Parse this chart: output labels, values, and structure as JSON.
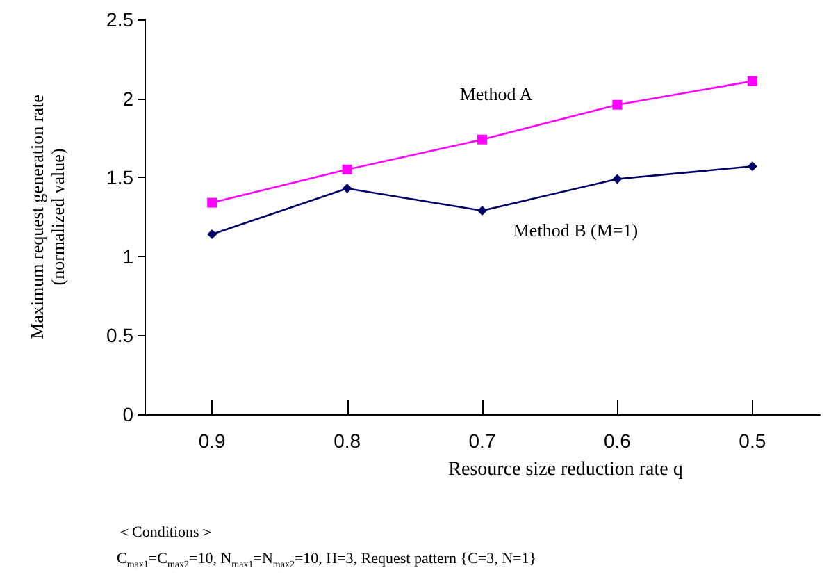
{
  "chart_data": {
    "type": "line",
    "xlabel": "Resource size reduction rate q",
    "ylabel": "Maximum request generation rate\n(normalized value)",
    "categories": [
      "0.9",
      "0.8",
      "0.7",
      "0.6",
      "0.5"
    ],
    "series": [
      {
        "name": "Method A",
        "color": "#ff00ff",
        "marker": "square",
        "values": [
          1.34,
          1.55,
          1.74,
          1.96,
          2.11
        ]
      },
      {
        "name": "Method B (M=1)",
        "color": "#000066",
        "marker": "diamond",
        "values": [
          1.14,
          1.43,
          1.29,
          1.49,
          1.57
        ]
      }
    ],
    "ylim": [
      0,
      2.5
    ],
    "yticks": [
      0,
      0.5,
      1,
      1.5,
      2,
      2.5
    ],
    "grid": false,
    "legend": false,
    "annotations": [
      "＜Conditions＞",
      "C$_{max1}$=C$_{max2}$=10, N$_{max1}$=N$_{max2}$=10, H=3, Request pattern {C=3, N=1}"
    ]
  }
}
